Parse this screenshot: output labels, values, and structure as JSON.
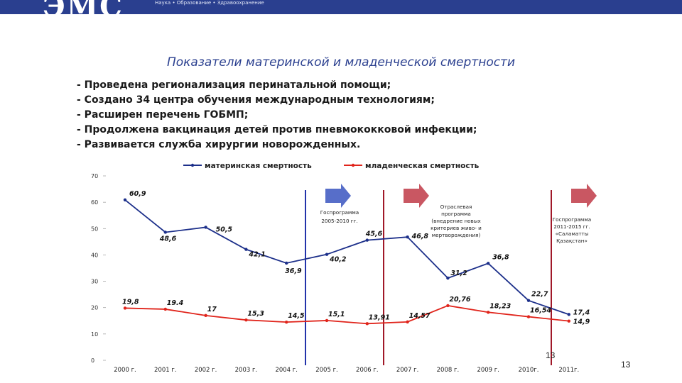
{
  "header": {
    "logo_text": "ЭМС",
    "tagline": "Наука • Образование • Здравоохранение"
  },
  "slide": {
    "title": "Показатели материнской и младенческой смертности",
    "bullets": [
      "- Проведена регионализация перинатальной помощи;",
      "- Создано 34 центра обучения международным технологиям;",
      "- Расширен перечень ГОБМП;",
      "- Продолжена вакцинация детей против пневмококковой инфекции;",
      "- Развивается служба хирургии новорожденных."
    ],
    "page_number": "13",
    "page_number_box": "13"
  },
  "chart_data": {
    "type": "line",
    "categories": [
      "2000 г.",
      "2001 г.",
      "2002 г.",
      "2003 г.",
      "2004 г.",
      "2005 г.",
      "2006 г.",
      "2007 г.",
      "2008 г.",
      "2009 г.",
      "2010г.",
      "2011г."
    ],
    "y_ticks": [
      "0",
      "10",
      "20",
      "30",
      "40",
      "50",
      "60",
      "70"
    ],
    "ylim": [
      0,
      70
    ],
    "legend_position": "top",
    "series": [
      {
        "name": "материнская смертность",
        "color": "#1c2f8a",
        "values": [
          60.9,
          48.6,
          50.5,
          42.1,
          36.9,
          40.2,
          45.6,
          46.8,
          31.2,
          36.8,
          22.7,
          17.4
        ],
        "labels": [
          "60,9",
          "48,6",
          "50,5",
          "42,1",
          "36,9",
          "40,2",
          "45,6",
          "46,8",
          "31,2",
          "36,8",
          "22,7",
          "17,4"
        ]
      },
      {
        "name": "младенческая смертность",
        "color": "#e0241b",
        "values": [
          19.8,
          19.4,
          17,
          15.3,
          14.5,
          15.1,
          13.91,
          14.57,
          20.76,
          18.23,
          16.54,
          14.9
        ],
        "labels": [
          "19,8",
          "19.4",
          "17",
          "15,3",
          "14,5",
          "15,1",
          "13,91",
          "14,57",
          "20,76",
          "18,23",
          "16,54",
          "14,9"
        ]
      }
    ],
    "annotations": [
      {
        "text": "Госпрограмма 2005-2010 гг.",
        "after_category": "2004 г.",
        "line_color": "#2233aa"
      },
      {
        "text": "Отраслевая программа (внедрение новых критериев живо- и мертворождения)",
        "after_category": "2006 г.",
        "line_color": "#a01828"
      },
      {
        "text": "Госпрограмма 2011-2015 гг. «Саламатты Қазақстан»",
        "after_category": "2010г.",
        "line_color": "#a01828"
      }
    ]
  }
}
